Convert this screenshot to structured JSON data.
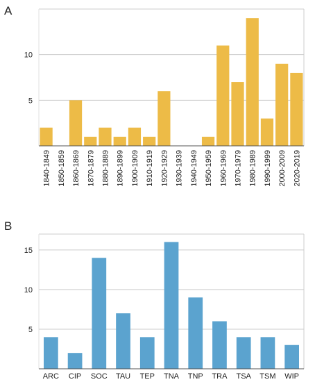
{
  "panels": {
    "a_label": "A",
    "b_label": "B"
  },
  "chart_data": [
    {
      "type": "bar",
      "panel": "A",
      "color": "#EDBB47",
      "categories": [
        "1840-1849",
        "1850-1859",
        "1860-1869",
        "1870-1879",
        "1880-1889",
        "1890-1899",
        "1900-1909",
        "1910-1919",
        "1920-1929",
        "1930-1939",
        "1940-1949",
        "1950-1959",
        "1960-1969",
        "1970-1979",
        "1980-1989",
        "1990-1999",
        "2000-2009",
        "2020-2019"
      ],
      "values": [
        2,
        0,
        5,
        1,
        2,
        1,
        2,
        1,
        6,
        0,
        0,
        1,
        11,
        7,
        14,
        3,
        9,
        8
      ],
      "yticks": [
        5,
        10
      ],
      "ylim": [
        0,
        15
      ],
      "grid": true,
      "title": "",
      "xlabel": "",
      "ylabel": ""
    },
    {
      "type": "bar",
      "panel": "B",
      "color": "#5BA3CF",
      "categories": [
        "ARC",
        "CIP",
        "SOC",
        "TAU",
        "TEP",
        "TNA",
        "TNP",
        "TRA",
        "TSA",
        "TSM",
        "WIP"
      ],
      "values": [
        4,
        2,
        14,
        7,
        4,
        16,
        9,
        6,
        4,
        4,
        3
      ],
      "yticks": [
        5,
        10,
        15
      ],
      "ylim": [
        0,
        17
      ],
      "grid": true,
      "title": "",
      "xlabel": "",
      "ylabel": ""
    }
  ]
}
